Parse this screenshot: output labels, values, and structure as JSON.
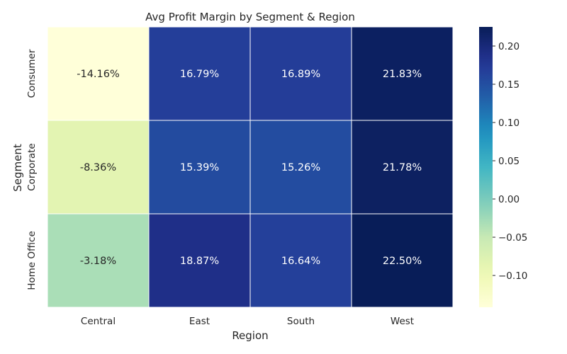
{
  "chart_data": {
    "type": "heatmap",
    "title": "Avg Profit Margin by Segment & Region",
    "xlabel": "Region",
    "ylabel": "Segment",
    "x_categories": [
      "Central",
      "East",
      "South",
      "West"
    ],
    "y_categories": [
      "Consumer",
      "Corporate",
      "Home Office"
    ],
    "values": [
      [
        -0.1416,
        0.1679,
        0.1689,
        0.2183
      ],
      [
        -0.0836,
        0.1539,
        0.1526,
        0.2178
      ],
      [
        -0.0318,
        0.1887,
        0.1664,
        0.225
      ]
    ],
    "cell_labels": [
      [
        "-14.16%",
        "16.79%",
        "16.89%",
        "21.83%"
      ],
      [
        "-8.36%",
        "15.39%",
        "15.26%",
        "21.78%"
      ],
      [
        "-3.18%",
        "18.87%",
        "16.64%",
        "22.50%"
      ]
    ],
    "colormap": "YlGnBu",
    "colorbar": {
      "vmin": -0.1416,
      "vmax": 0.225,
      "ticks": [
        -0.1,
        -0.05,
        0.0,
        0.05,
        0.1,
        0.15,
        0.2
      ],
      "tick_labels": [
        "−0.10",
        "−0.05",
        "0.00",
        "0.05",
        "0.10",
        "0.15",
        "0.20"
      ]
    }
  }
}
